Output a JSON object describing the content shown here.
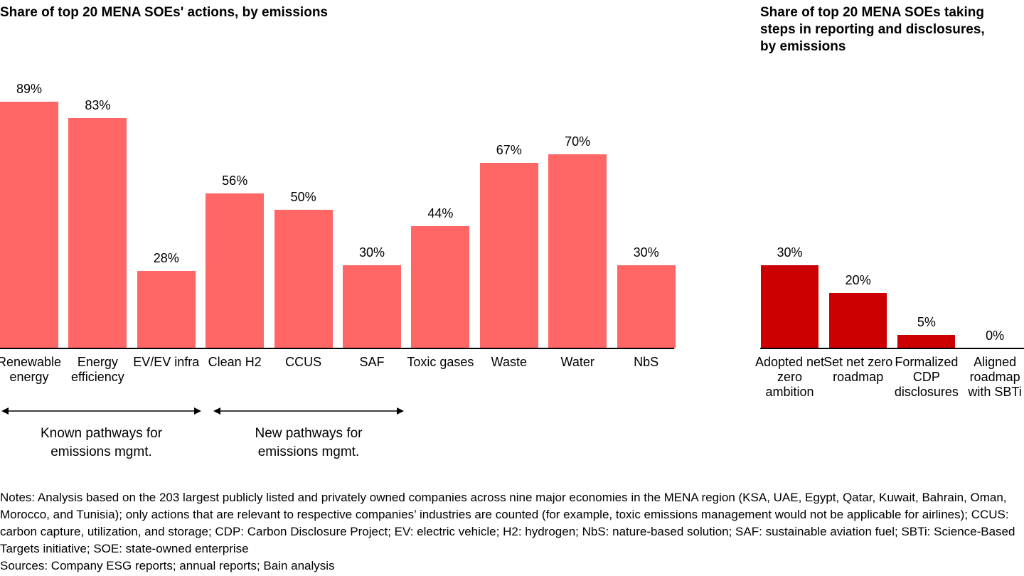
{
  "chart_data": [
    {
      "type": "bar",
      "title": "Share of top 20 MENA SOEs' actions, by emissions",
      "categories": [
        "Renewable energy",
        "Energy efficiency",
        "EV/EV infra",
        "Clean H2",
        "CCUS",
        "SAF",
        "Toxic gases",
        "Waste",
        "Water",
        "NbS"
      ],
      "values": [
        89,
        83,
        28,
        56,
        50,
        30,
        44,
        67,
        70,
        30
      ],
      "value_labels": [
        "89%",
        "83%",
        "28%",
        "56%",
        "50%",
        "30%",
        "44%",
        "67%",
        "70%",
        "30%"
      ],
      "color": "#ff6666",
      "annotations": [
        "Known pathways for emissions mgmt.",
        "New pathways for emissions mgmt."
      ]
    },
    {
      "type": "bar",
      "title": "Share of top 20 MENA SOEs taking steps in reporting and disclosures, by emissions",
      "categories": [
        "Adopted net zero ambition",
        "Set net zero roadmap",
        "Formalized CDP disclosures",
        "Aligned roadmap with SBTi"
      ],
      "values": [
        30,
        20,
        5,
        0
      ],
      "value_labels": [
        "30%",
        "20%",
        "5%",
        "0%"
      ],
      "color": "#cc0000"
    }
  ],
  "notes": "Notes: Analysis based on the 203 largest publicly listed and privately owned companies across nine major economies in the MENA region (KSA, UAE, Egypt, Qatar, Kuwait, Bahrain, Oman, Morocco, and Tunisia); only actions that are relevant to respective companies’ industries are counted (for example, toxic emissions management would not be applicable for airlines); CCUS: carbon capture, utilization, and storage; CDP: Carbon Disclosure Project; EV: electric vehicle; H2: hydrogen; NbS: nature-based solution; SAF: sustainable aviation fuel; SBTi: Science-Based Targets initiative; SOE: state-owned enterprise",
  "sources": "Sources: Company ESG reports; annual reports; Bain analysis"
}
